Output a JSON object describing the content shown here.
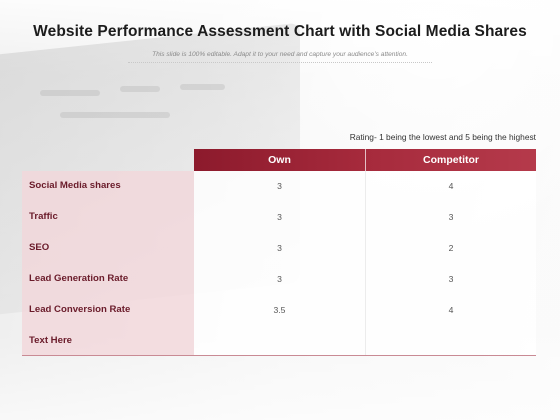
{
  "title": "Website Performance Assessment Chart with Social Media Shares",
  "subtitle": "This slide is 100% editable. Adapt it to your need and capture your audience’s attention.",
  "rating_note": "Rating- 1 being the lowest and 5 being the highest",
  "columns": [
    "Own",
    "Competitor"
  ],
  "rows": [
    {
      "label": "Social Media shares",
      "own": "3",
      "competitor": "4"
    },
    {
      "label": "Traffic",
      "own": "3",
      "competitor": "3"
    },
    {
      "label": "SEO",
      "own": "3",
      "competitor": "2"
    },
    {
      "label": "Lead Generation Rate",
      "own": "3",
      "competitor": "3"
    },
    {
      "label": "Lead Conversion Rate",
      "own": "3.5",
      "competitor": "4"
    },
    {
      "label": "Text Here",
      "own": "",
      "competitor": ""
    }
  ],
  "colors": {
    "header": "#a62a3c",
    "label_fill": "#f2d6da",
    "label_text": "#6a1b2a"
  }
}
